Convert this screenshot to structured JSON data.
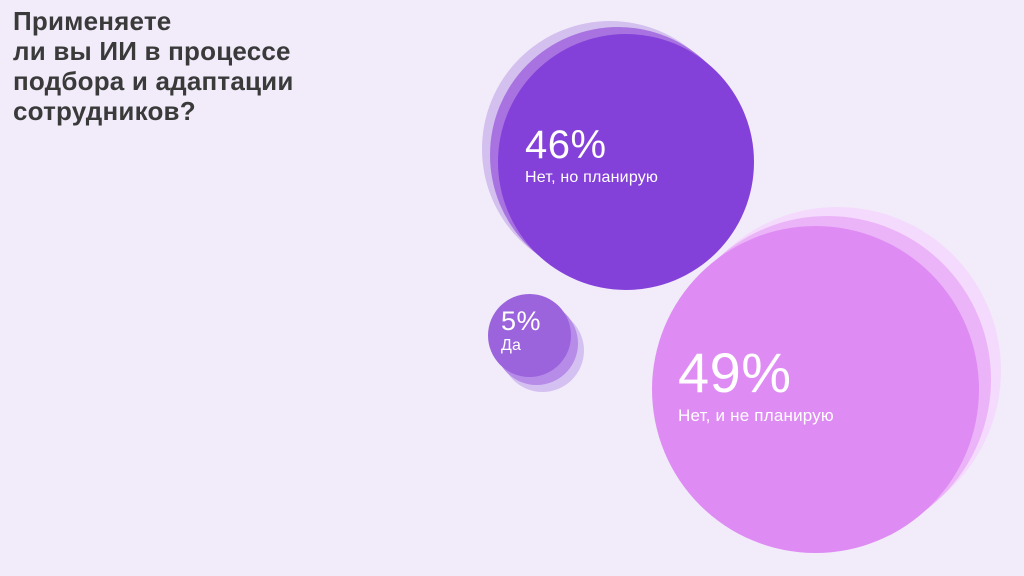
{
  "title": {
    "text": "Применяете\nли вы ИИ в процессе\nподбора и адаптации\nсотрудников?"
  },
  "bubbles": [
    {
      "value": "46%",
      "label": "Нет, но планирую",
      "color": "#8441d9",
      "halo_colors": [
        "#a873e1",
        "#d3c0ef"
      ]
    },
    {
      "value": "5%",
      "label": "Да",
      "color": "#9b64dd",
      "halo_colors": [
        "#b68ce8",
        "#d5c1f1"
      ]
    },
    {
      "value": "49%",
      "label": "Нет, и не планирую",
      "color": "#de8cf3",
      "halo_colors": [
        "#ecb4f8",
        "#f4dafc"
      ]
    }
  ],
  "palette": {
    "background": "#f2ecfa",
    "title_text": "#3a3a3a",
    "bubble_text": "#ffffff"
  },
  "chart_data": {
    "type": "pie",
    "variant": "bubble-infographic",
    "title": "Применяете ли вы ИИ в процессе подбора и адаптации сотрудников?",
    "categories": [
      "Нет, но планирую",
      "Да",
      "Нет, и не планирую"
    ],
    "values": [
      46,
      5,
      49
    ],
    "unit": "%",
    "colors": [
      "#8441d9",
      "#9b64dd",
      "#de8cf3"
    ],
    "legend_position": "labels-inside-bubbles",
    "grid": false,
    "axes": false
  }
}
